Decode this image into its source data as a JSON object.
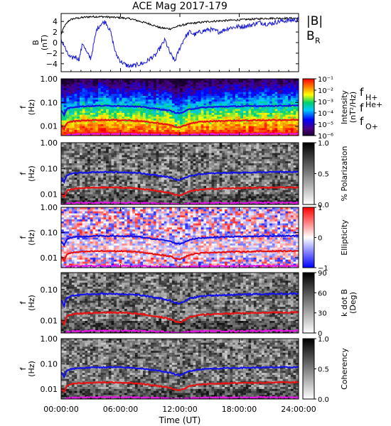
{
  "figure": {
    "title": "ACE Mag 2017-179",
    "xlabel": "Time (UT)",
    "time_ticks": [
      "00:00:00",
      "06:00:00",
      "12:00:00",
      "18:00:00",
      "24:00:00"
    ],
    "legend": {
      "b_total": "|B|",
      "b_r_main": "B",
      "b_r_sub": "R",
      "f_h_main": "f",
      "f_h_sub": "H+",
      "f_he_main": "f",
      "f_he_sup": "He+",
      "f_o_main": "f",
      "f_o_sub": "O+"
    }
  },
  "colors": {
    "b_total": "#000000",
    "b_r": "#1a1ad6",
    "f_h": "#1414e6",
    "f_he": "#e61414",
    "f_o": "#e614e6"
  },
  "chart_data": [
    {
      "type": "line",
      "name": "B-field",
      "ylabel_main": "B",
      "ylabel_unit": "(nT)",
      "ylim": [
        -5.5,
        5.5
      ],
      "yticks": [
        "4",
        "2",
        "0",
        "−2",
        "−4"
      ],
      "ytick_values": [
        4,
        2,
        0,
        -2,
        -4
      ],
      "xlim": [
        0,
        24
      ],
      "series": [
        {
          "name": "|B|",
          "x": [
            0,
            0.3,
            0.8,
            1.2,
            1.6,
            2.0,
            2.4,
            3.0,
            4.0,
            5.0,
            6.0,
            7.0,
            8.0,
            9.0,
            10.0,
            11.0,
            12.0,
            13.0,
            14.0,
            15.0,
            16.0,
            17.0,
            18.0,
            19.0,
            20.0,
            21.0,
            22.0,
            23.0,
            24.0
          ],
          "y": [
            1.5,
            3.0,
            4.2,
            4.5,
            4.6,
            4.7,
            4.8,
            4.9,
            4.9,
            4.8,
            4.7,
            4.5,
            4.0,
            3.5,
            2.8,
            2.6,
            3.2,
            3.6,
            3.8,
            4.0,
            4.1,
            4.2,
            4.3,
            4.4,
            4.5,
            4.6,
            4.6,
            4.6,
            4.6
          ]
        },
        {
          "name": "B_R",
          "x": [
            0,
            0.3,
            0.6,
            1.0,
            1.4,
            1.8,
            2.2,
            2.6,
            3.0,
            3.6,
            4.0,
            4.5,
            5.0,
            5.5,
            6.0,
            6.5,
            7.0,
            7.5,
            8.0,
            8.5,
            9.0,
            9.5,
            10.0,
            10.5,
            11.0,
            11.5,
            12.0,
            12.5,
            13.0,
            13.5,
            14.0,
            15.0,
            16.0,
            17.0,
            18.0,
            19.0,
            20.0,
            21.0,
            22.0,
            23.0,
            24.0
          ],
          "y": [
            0.5,
            -0.5,
            -2.0,
            -3.0,
            -2.6,
            -3.2,
            0.0,
            -2.0,
            -3.0,
            2.5,
            3.5,
            4.0,
            2.0,
            -2.0,
            -3.5,
            -4.2,
            -4.5,
            -4.3,
            -4.0,
            -3.8,
            -3.0,
            -2.5,
            -1.0,
            0.5,
            -2.0,
            -3.5,
            -1.0,
            1.0,
            2.0,
            1.5,
            2.0,
            2.5,
            2.0,
            2.8,
            3.0,
            3.2,
            3.8,
            3.5,
            4.0,
            4.2,
            4.3
          ]
        }
      ]
    },
    {
      "type": "heatmap",
      "name": "Intensity",
      "ylabel_main": "f",
      "ylabel_unit": "(Hz)",
      "yscale": "log",
      "ylim": [
        0.004,
        1.0
      ],
      "yticks": [
        "1.00",
        "0.10",
        "0.01"
      ],
      "ytick_values": [
        1.0,
        0.1,
        0.01
      ],
      "colorbar_label_main": "Intensity",
      "colorbar_label_unit": "(nT²/Hz)",
      "colorbar_ticks": [
        "10⁻¹",
        "10⁻²",
        "10⁻³",
        "10⁻⁴",
        "10⁻⁵",
        "10⁻⁶"
      ],
      "colorbar_tick_fracs": [
        1.0,
        0.8,
        0.6,
        0.4,
        0.2,
        0.0
      ],
      "colormap": "rainbow"
    },
    {
      "type": "heatmap",
      "name": "Polarization",
      "ylabel_main": "f",
      "ylabel_unit": "(Hz)",
      "yscale": "log",
      "ylim": [
        0.004,
        1.0
      ],
      "yticks": [
        "1.00",
        "0.10",
        "0.01"
      ],
      "ytick_values": [
        1.0,
        0.1,
        0.01
      ],
      "colorbar_label_main": "% Polarization",
      "colorbar_label_unit": "",
      "colorbar_ticks": [
        "1.0",
        "0.5",
        "0.0"
      ],
      "colorbar_tick_fracs": [
        1.0,
        0.5,
        0.0
      ],
      "colormap": "gray"
    },
    {
      "type": "heatmap",
      "name": "Ellipticity",
      "ylabel_main": "f",
      "ylabel_unit": "(Hz)",
      "yscale": "log",
      "ylim": [
        0.004,
        1.0
      ],
      "yticks": [
        "1.00",
        "0.10",
        "0.01"
      ],
      "ytick_values": [
        1.0,
        0.1,
        0.01
      ],
      "colorbar_label_main": "Ellipticity",
      "colorbar_label_unit": "",
      "colorbar_ticks": [
        "1",
        "0",
        "−1"
      ],
      "colorbar_tick_fracs": [
        1.0,
        0.5,
        0.0
      ],
      "colormap": "bluewhitered"
    },
    {
      "type": "heatmap",
      "name": "Wave normal angle",
      "ylabel_main": "f",
      "ylabel_unit": "(Hz)",
      "yscale": "log",
      "ylim": [
        0.004,
        0.35
      ],
      "yticks": [
        "0.10",
        "0.01"
      ],
      "ytick_values": [
        0.1,
        0.01
      ],
      "colorbar_label_main": "k dot B",
      "colorbar_label_unit": "(Deg)",
      "colorbar_ticks": [
        "90",
        "60",
        "30",
        "0"
      ],
      "colorbar_tick_fracs": [
        1.0,
        0.6667,
        0.3333,
        0.0
      ],
      "colormap": "gray"
    },
    {
      "type": "heatmap",
      "name": "Coherency",
      "ylabel_main": "f",
      "ylabel_unit": "(Hz)",
      "yscale": "log",
      "ylim": [
        0.004,
        1.0
      ],
      "yticks": [
        "1.00",
        "0.10",
        "0.01"
      ],
      "ytick_values": [
        1.0,
        0.1,
        0.01
      ],
      "colorbar_label_main": "Coherency",
      "colorbar_label_unit": "",
      "colorbar_ticks": [
        "1.0",
        "0.5",
        "0.0"
      ],
      "colorbar_tick_fracs": [
        1.0,
        0.5,
        0.0
      ],
      "colormap": "gray"
    }
  ],
  "gyrofrequency_lines": [
    {
      "name": "f_H+",
      "x": [
        0,
        0.3,
        0.6,
        1.0,
        1.5,
        2.0,
        3.0,
        4.0,
        5.0,
        6.0,
        7.0,
        8.0,
        9.0,
        10.0,
        11.0,
        11.5,
        12.0,
        12.5,
        13.0,
        14.0,
        15.0,
        16.0,
        17.0,
        18.0,
        19.0,
        20.0,
        21.0,
        22.0,
        23.0,
        24.0
      ],
      "y": [
        0.045,
        0.03,
        0.055,
        0.062,
        0.066,
        0.068,
        0.071,
        0.073,
        0.073,
        0.072,
        0.07,
        0.066,
        0.058,
        0.052,
        0.045,
        0.038,
        0.035,
        0.042,
        0.052,
        0.06,
        0.064,
        0.066,
        0.068,
        0.069,
        0.07,
        0.071,
        0.072,
        0.073,
        0.073,
        0.074
      ]
    },
    {
      "name": "f_He+",
      "x": [
        0,
        0.3,
        0.6,
        1.0,
        1.5,
        2.0,
        3.0,
        4.0,
        5.0,
        6.0,
        7.0,
        8.0,
        9.0,
        10.0,
        11.0,
        11.5,
        12.0,
        12.5,
        13.0,
        14.0,
        15.0,
        16.0,
        17.0,
        18.0,
        19.0,
        20.0,
        21.0,
        22.0,
        23.0,
        24.0
      ],
      "y": [
        0.011,
        0.0075,
        0.0138,
        0.0155,
        0.0165,
        0.017,
        0.0178,
        0.0183,
        0.0183,
        0.018,
        0.0175,
        0.0165,
        0.0145,
        0.013,
        0.0113,
        0.0095,
        0.0088,
        0.0105,
        0.013,
        0.015,
        0.016,
        0.0165,
        0.017,
        0.0173,
        0.0175,
        0.0178,
        0.018,
        0.0183,
        0.0183,
        0.0185
      ]
    },
    {
      "name": "f_O+",
      "x": [
        0,
        0.3,
        0.6,
        1.0,
        1.5,
        2.0,
        3.0,
        4.0,
        5.0,
        6.0,
        7.0,
        8.0,
        9.0,
        10.0,
        11.0,
        11.5,
        12.0,
        12.5,
        13.0,
        14.0,
        15.0,
        16.0,
        17.0,
        18.0,
        19.0,
        20.0,
        21.0,
        22.0,
        23.0,
        24.0
      ],
      "y": [
        0.0042,
        0.0035,
        0.0044,
        0.0045,
        0.0046,
        0.0046,
        0.0047,
        0.0047,
        0.0047,
        0.0047,
        0.0047,
        0.0046,
        0.0045,
        0.0044,
        0.0043,
        0.0041,
        0.004,
        0.0042,
        0.0044,
        0.0045,
        0.0046,
        0.0046,
        0.0046,
        0.0046,
        0.0047,
        0.0047,
        0.0047,
        0.0047,
        0.0047,
        0.0047
      ]
    }
  ]
}
